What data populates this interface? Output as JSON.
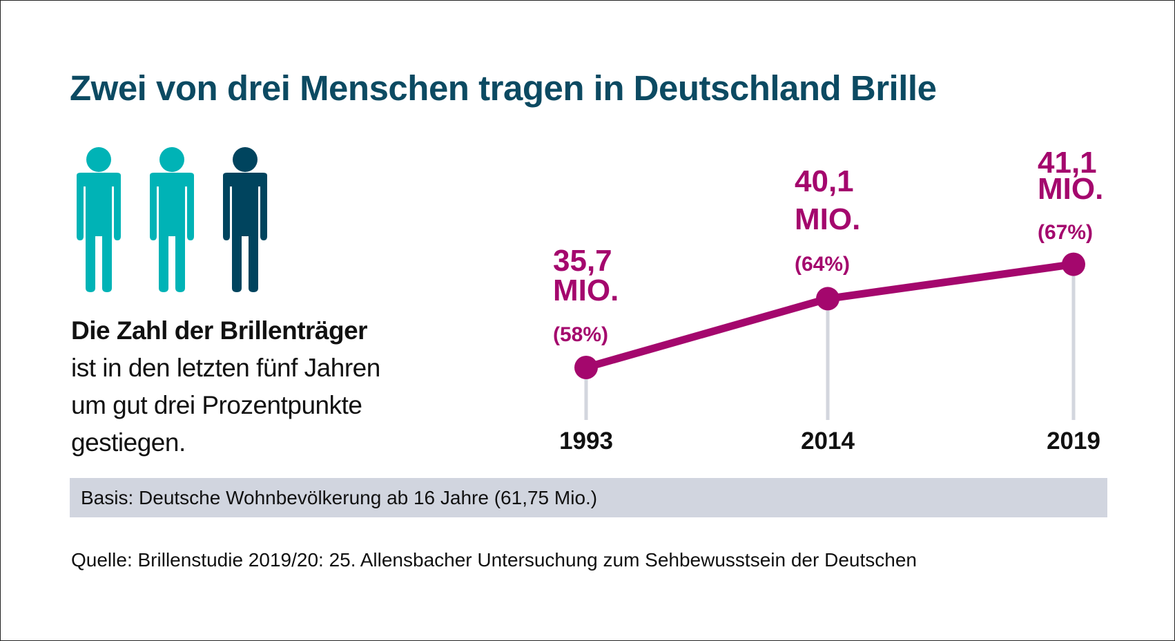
{
  "title": "Zwei von drei Menschen tragen in Deutschland Brille",
  "icons": {
    "people": [
      "person-icon",
      "person-icon",
      "person-icon"
    ],
    "colors": [
      "#00b3b6",
      "#00b3b6",
      "#00445e"
    ]
  },
  "description": {
    "bold": "Die Zahl der Brillenträger",
    "lines": [
      "ist in den letzten fünf Jahren",
      "um gut drei Prozentpunkte",
      "gestiegen."
    ]
  },
  "chart_data": {
    "type": "line",
    "categories": [
      "1993",
      "2014",
      "2019"
    ],
    "values_mio": [
      35.7,
      40.1,
      41.1
    ],
    "values_percent": [
      58,
      64,
      67
    ],
    "value_labels": [
      "35,7",
      "40,1",
      "41,1"
    ],
    "unit_label": "MIO.",
    "percent_labels": [
      "(58%)",
      "(64%)",
      "(67%)"
    ],
    "color": "#a4076d",
    "stem_color": "#d3d6de",
    "grid": false
  },
  "basis": "Basis: Deutsche Wohnbevölkerung ab 16 Jahre (61,75 Mio.)",
  "source": "Quelle: Brillenstudie 2019/20: 25. Allensbacher Untersuchung zum Sehbewusstsein der Deutschen"
}
